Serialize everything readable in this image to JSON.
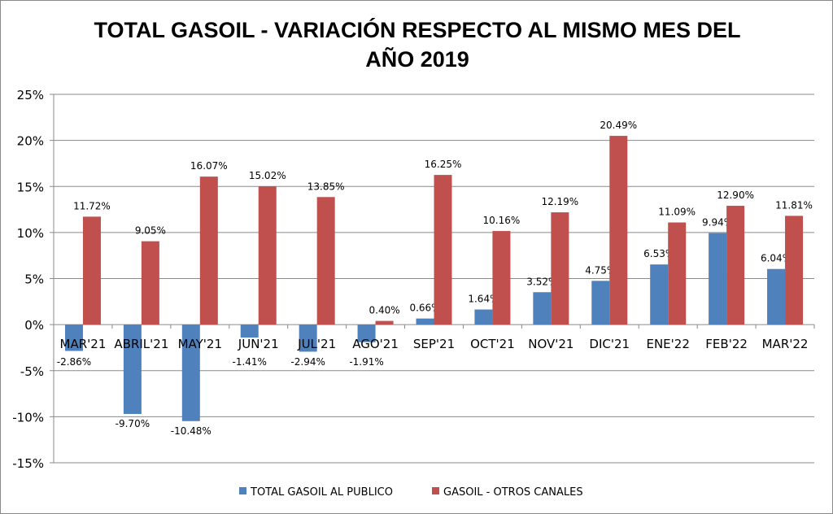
{
  "chart_data": {
    "type": "bar",
    "title_line1": "TOTAL GASOIL - VARIACIÓN RESPECTO AL MISMO MES DEL",
    "title_line2": "AÑO 2019",
    "categories": [
      "MAR'21",
      "ABRIL'21",
      "MAY'21",
      "JUN'21",
      "JUL'21",
      "AGO'21",
      "SEP'21",
      "OCT'21",
      "NOV'21",
      "DIC'21",
      "ENE'22",
      "FEB'22",
      "MAR'22"
    ],
    "series": [
      {
        "name": "TOTAL GASOIL AL PUBLICO",
        "color": "#4F81BD",
        "values": [
          -2.86,
          -9.7,
          -10.48,
          -1.41,
          -2.94,
          -1.91,
          0.66,
          1.64,
          3.52,
          4.75,
          6.53,
          9.94,
          6.04
        ]
      },
      {
        "name": "GASOIL - OTROS CANALES",
        "color": "#C0504D",
        "values": [
          11.72,
          9.05,
          16.07,
          15.02,
          13.85,
          0.4,
          16.25,
          10.16,
          12.19,
          20.49,
          11.09,
          12.9,
          11.81
        ]
      }
    ],
    "yticks": [
      "25%",
      "20%",
      "15%",
      "10%",
      "5%",
      "0%",
      "-5%",
      "-10%",
      "-15%"
    ],
    "ytick_values": [
      25,
      20,
      15,
      10,
      5,
      0,
      -5,
      -10,
      -15
    ],
    "ylim": [
      -15,
      25
    ],
    "legend": "bottom",
    "grid": true
  }
}
